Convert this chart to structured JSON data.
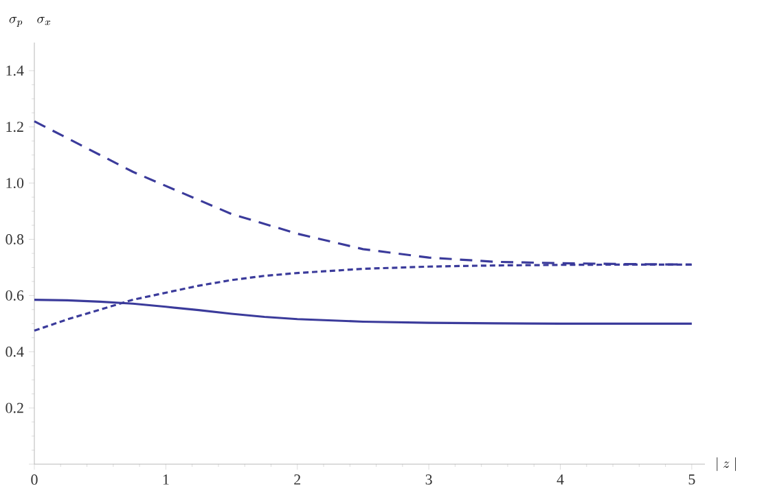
{
  "chart_data": {
    "type": "line",
    "xlabel": "|\\;z\\;|",
    "ylabel": "\\sigma_p\\quad\\sigma_x",
    "x": [
      0,
      0.25,
      0.5,
      0.75,
      1,
      1.25,
      1.5,
      1.75,
      2,
      2.5,
      3,
      3.5,
      4,
      4.5,
      5
    ],
    "series": [
      {
        "color": "#3b3b9b",
        "line_style": "solid",
        "values": [
          0.585,
          0.583,
          0.578,
          0.571,
          0.56,
          0.548,
          0.535,
          0.524,
          0.516,
          0.507,
          0.503,
          0.501,
          0.5,
          0.5,
          0.5
        ]
      },
      {
        "color": "#3b3b9b",
        "line_style": "dashed",
        "values": [
          1.22,
          1.16,
          1.1,
          1.04,
          0.99,
          0.94,
          0.89,
          0.855,
          0.82,
          0.765,
          0.735,
          0.72,
          0.715,
          0.712,
          0.71
        ]
      },
      {
        "color": "#3b3b9b",
        "line_style": "dotted",
        "values": [
          0.475,
          0.515,
          0.55,
          0.585,
          0.61,
          0.635,
          0.655,
          0.67,
          0.68,
          0.695,
          0.703,
          0.707,
          0.709,
          0.71,
          0.71
        ]
      }
    ],
    "xlim": [
      0,
      5.1
    ],
    "ylim": [
      0,
      1.5
    ],
    "xticks": [
      0,
      1,
      2,
      3,
      4,
      5
    ],
    "yticks": [
      {
        "value": 0,
        "label": null
      },
      0.2,
      0.4,
      0.6,
      0.8,
      {
        "value": 1,
        "label": "1.0"
      },
      1.2,
      1.4
    ],
    "grid": false,
    "marker": "none"
  }
}
